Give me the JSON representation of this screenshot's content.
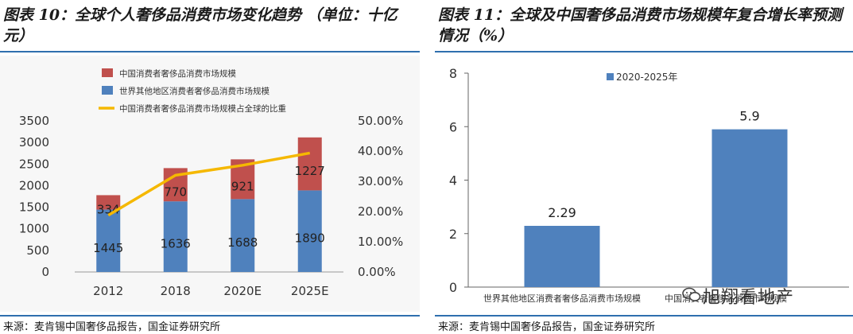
{
  "left": {
    "title": "图表 10：全球个人奢侈品消费市场变化趋势 （单位：十亿元）",
    "source": "来源：麦肯锡中国奢侈品报告，国金证券研究所",
    "chart_data": {
      "type": "bar",
      "stacked": true,
      "categories": [
        "2012",
        "2018",
        "2020E",
        "2025E"
      ],
      "series": [
        {
          "name": "中国消费者奢侈品消费市场规模",
          "values": [
            334,
            770,
            921,
            1227
          ],
          "color": "#c0504d",
          "kind": "bar"
        },
        {
          "name": "世界其他地区消费者奢侈品消费市场规模",
          "values": [
            1445,
            1636,
            1688,
            1890
          ],
          "color": "#4f81bd",
          "kind": "bar"
        },
        {
          "name": "中国消费者奢侈品消费市场规模占全球的比重",
          "values": [
            18.77,
            32.0,
            35.31,
            39.36
          ],
          "color": "#f5b800",
          "kind": "line",
          "axis": "right"
        }
      ],
      "ylim": [
        0,
        3500
      ],
      "yticks": [
        "0",
        "500",
        "1000",
        "1500",
        "2000",
        "2500",
        "3000",
        "3500"
      ],
      "y2lim": [
        0,
        50
      ],
      "y2ticks": [
        "0.00%",
        "10.00%",
        "20.00%",
        "30.00%",
        "40.00%",
        "50.00%"
      ],
      "legend": "top-left",
      "grid": false
    }
  },
  "right": {
    "title": "图表 11：全球及中国奢侈品消费市场规模年复合增长率预测情况（%）",
    "source": "来源：麦肯锡中国奢侈品报告，国金证券研究所",
    "watermark": "旭翔看地产",
    "chart_data": {
      "type": "bar",
      "categories": [
        "世界其他地区消费者奢侈品消费市场规模",
        "中国消费者奢侈品消费市场规模"
      ],
      "series": [
        {
          "name": "2020-2025年",
          "values": [
            2.29,
            5.9
          ],
          "color": "#4f81bd"
        }
      ],
      "data_labels": [
        "2.29",
        "5.9"
      ],
      "ylim": [
        0,
        8
      ],
      "yticks": [
        "0",
        "2",
        "4",
        "6",
        "8"
      ],
      "legend": "top-center",
      "grid": false
    }
  }
}
